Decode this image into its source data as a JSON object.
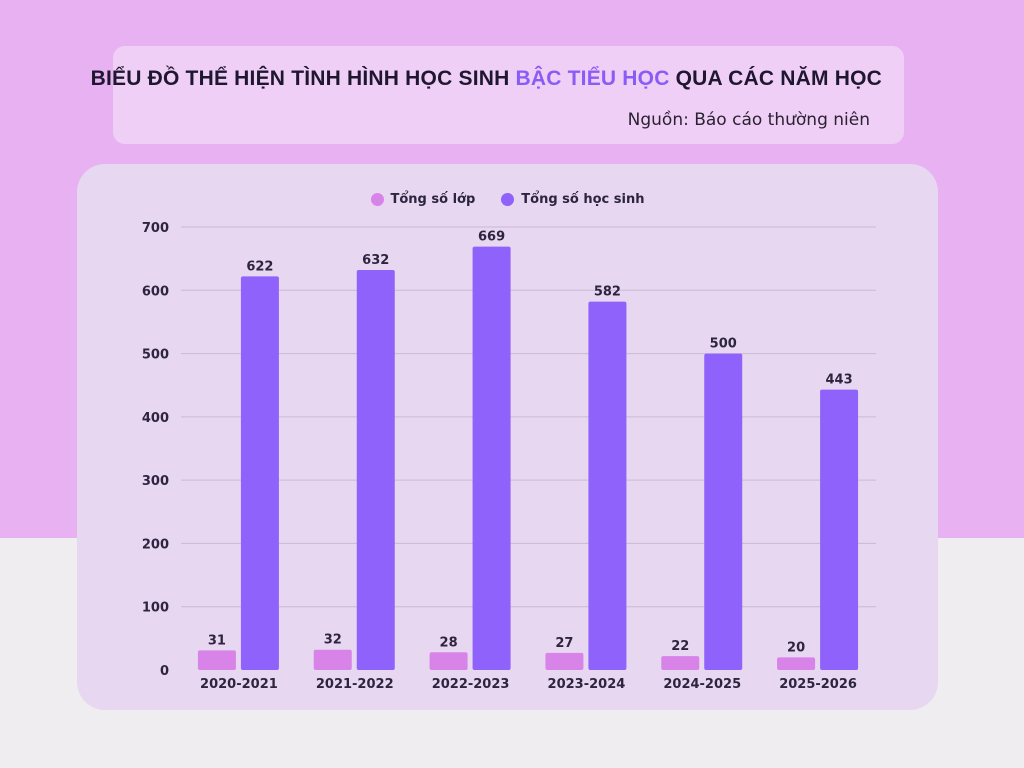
{
  "header": {
    "title_part1": "BIỂU ĐỒ THỂ HIỆN TÌNH HÌNH HỌC SINH ",
    "title_highlight": "BẬC TIỂU HỌC",
    "title_part2": " QUA CÁC NĂM HỌC",
    "source": "Nguồn: Báo cáo thường niên"
  },
  "colors": {
    "classes": "#d883e8",
    "students": "#8f62fb",
    "highlight": "#8a5cf6"
  },
  "chart_data": {
    "type": "bar",
    "categories": [
      "2020-2021",
      "2021-2022",
      "2022-2023",
      "2023-2024",
      "2024-2025",
      "2025-2026"
    ],
    "series": [
      {
        "name": "Tổng số lớp",
        "values": [
          31,
          32,
          28,
          27,
          22,
          20
        ]
      },
      {
        "name": "Tổng số học sinh",
        "values": [
          622,
          632,
          669,
          582,
          500,
          443
        ]
      }
    ],
    "ylim": [
      0,
      700
    ],
    "yticks": [
      0,
      100,
      200,
      300,
      400,
      500,
      600,
      700
    ],
    "grid": true,
    "legend": "top-center",
    "data_labels": true
  }
}
